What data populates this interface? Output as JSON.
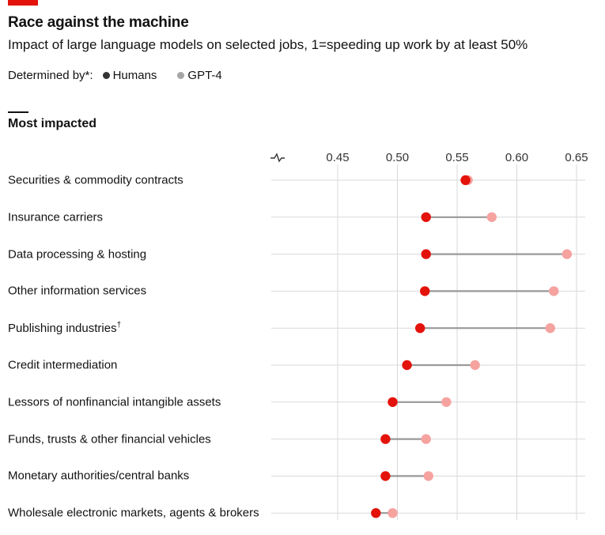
{
  "title": "Race against the machine",
  "subtitle": "Impact of large language models on selected jobs, 1=speeding up work by at least 50%",
  "legend": {
    "label": "Determined by*:",
    "items": [
      {
        "name": "Humans",
        "color": "#e3120b"
      },
      {
        "name": "GPT-4",
        "color": "#f6a3a0"
      }
    ],
    "marker_colors": [
      "#333333",
      "#a6a6a6"
    ]
  },
  "section_title": "Most impacted",
  "colors": {
    "humans": "#e3120b",
    "gpt4": "#f6a3a0",
    "connector": "#999999",
    "grid": "#d9d9d9",
    "accent": "#e3120b"
  },
  "chart_data": {
    "type": "dot-range",
    "title": "Race against the machine",
    "subtitle": "Impact of large language models on selected jobs, 1=speeding up work by at least 50%",
    "xlim": [
      0.4,
      0.65
    ],
    "axis_break": true,
    "x_ticks": [
      "0.45",
      "0.50",
      "0.55",
      "0.60",
      "0.65"
    ],
    "x_tick_values": [
      0.45,
      0.5,
      0.55,
      0.6,
      0.65
    ],
    "legend_position": "top-left",
    "grid": true,
    "categories": [
      "Securities & commodity contracts",
      "Insurance carriers",
      "Data processing & hosting",
      "Other information services",
      "Publishing industries",
      "Credit intermediation",
      "Lessors of nonfinancial intangible assets",
      "Funds, trusts & other financial vehicles",
      "Monetary authorities/central banks",
      "Wholesale electronic markets, agents & brokers"
    ],
    "category_marks": [
      "",
      "",
      "",
      "",
      "†",
      "",
      "",
      "",
      "",
      ""
    ],
    "series": [
      {
        "name": "Humans",
        "values": [
          0.557,
          0.524,
          0.524,
          0.523,
          0.519,
          0.508,
          0.496,
          0.49,
          0.49,
          0.482
        ]
      },
      {
        "name": "GPT-4",
        "values": [
          0.559,
          0.579,
          0.642,
          0.631,
          0.628,
          0.565,
          0.541,
          0.524,
          0.526,
          0.496
        ]
      }
    ]
  }
}
